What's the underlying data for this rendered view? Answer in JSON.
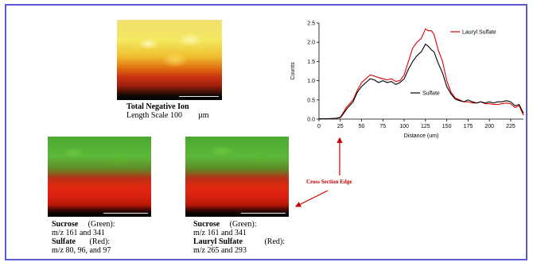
{
  "top_image": {
    "caption_title": "Total Negative Ion",
    "caption_scale_prefix": "Length Scale 100",
    "caption_scale_unit": "µm"
  },
  "left_image": {
    "line1_name": "Sucrose",
    "line1_color": "(Green):",
    "line2": "m/z 161 and 341",
    "line3_name": "Sulfate",
    "line3_color": "(Red):",
    "line4": "m/z 80, 96, and 97"
  },
  "right_image": {
    "line1_name": "Sucrose",
    "line1_color": "(Green):",
    "line2": "m/z 161 and 341",
    "line3_name": "Lauryl Sulfate",
    "line3_color": "(Red):",
    "line4": "m/z 265 and 293"
  },
  "annotation": {
    "cross_section_label": "Cross Section Edge"
  },
  "chart_data": {
    "type": "line",
    "title": "",
    "xlabel": "Distance (um)",
    "ylabel": "Counts",
    "xlim": [
      0,
      240
    ],
    "ylim": [
      0,
      2.5
    ],
    "x_ticks": [
      0,
      25,
      50,
      75,
      100,
      125,
      150,
      175,
      200,
      225
    ],
    "y_ticks": [
      0.0,
      0.5,
      1.0,
      1.5,
      2.0,
      2.5
    ],
    "x_tick_labels": [
      "0",
      "25",
      "50",
      "75",
      "100",
      "125",
      "150",
      "175",
      "200",
      "225"
    ],
    "y_tick_labels": [
      "0.0",
      "0.5",
      "1.0",
      "1.5",
      "2.0",
      "2.5"
    ],
    "grid": false,
    "series": [
      {
        "name": "Lauryl Sulfate",
        "color": "#e00000",
        "x": [
          0,
          10,
          20,
          25,
          28,
          32,
          36,
          40,
          45,
          50,
          55,
          60,
          65,
          70,
          75,
          80,
          85,
          90,
          95,
          100,
          105,
          110,
          115,
          120,
          125,
          128,
          132,
          135,
          140,
          145,
          150,
          155,
          160,
          165,
          170,
          175,
          180,
          185,
          190,
          195,
          200,
          205,
          210,
          215,
          220,
          225,
          230,
          235,
          240
        ],
        "y": [
          0.01,
          0.01,
          0.02,
          0.05,
          0.15,
          0.3,
          0.4,
          0.5,
          0.75,
          0.95,
          1.05,
          1.15,
          1.12,
          1.08,
          1.05,
          1.02,
          1.05,
          0.98,
          1.0,
          1.15,
          1.5,
          1.85,
          2.0,
          2.1,
          2.35,
          2.3,
          2.3,
          2.2,
          1.8,
          1.5,
          1.0,
          0.7,
          0.55,
          0.5,
          0.45,
          0.45,
          0.42,
          0.42,
          0.45,
          0.4,
          0.4,
          0.38,
          0.38,
          0.4,
          0.42,
          0.4,
          0.3,
          0.35,
          0.1
        ]
      },
      {
        "name": "Sulfate",
        "color": "#000000",
        "x": [
          0,
          10,
          20,
          25,
          28,
          32,
          36,
          40,
          45,
          50,
          55,
          60,
          65,
          70,
          75,
          80,
          85,
          90,
          95,
          100,
          105,
          110,
          115,
          120,
          125,
          128,
          132,
          135,
          140,
          145,
          150,
          155,
          160,
          165,
          170,
          175,
          180,
          185,
          190,
          195,
          200,
          205,
          210,
          215,
          220,
          225,
          230,
          235,
          240
        ],
        "y": [
          0.01,
          0.01,
          0.02,
          0.04,
          0.12,
          0.25,
          0.35,
          0.45,
          0.7,
          0.85,
          0.95,
          1.05,
          1.02,
          0.95,
          1.0,
          0.95,
          0.98,
          0.9,
          0.95,
          1.05,
          1.3,
          1.5,
          1.65,
          1.75,
          1.95,
          1.9,
          1.8,
          1.75,
          1.45,
          1.2,
          0.85,
          0.65,
          0.52,
          0.48,
          0.45,
          0.5,
          0.45,
          0.42,
          0.45,
          0.42,
          0.45,
          0.42,
          0.45,
          0.45,
          0.48,
          0.45,
          0.35,
          0.38,
          0.15
        ]
      }
    ],
    "legend": [
      {
        "series": "Lauryl Sulfate",
        "text": "Lauryl Sulfate"
      },
      {
        "series": "Sulfate",
        "text": "Sulfate"
      }
    ]
  },
  "colors": {
    "frame_border": "#5a5ad6",
    "annotation_red": "#cc0000"
  }
}
